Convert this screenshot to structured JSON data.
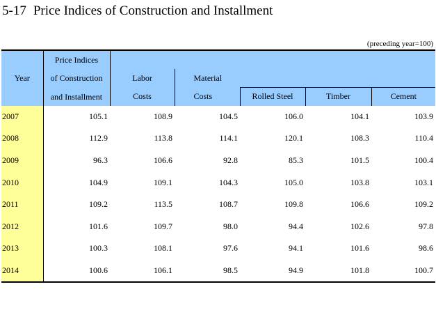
{
  "title": {
    "number": "5-17",
    "text": "Price Indices of Construction and Installment"
  },
  "unit_note": "(preceding year=100)",
  "headers": {
    "year": "Year",
    "price_indices_line1": "Price Indices",
    "price_indices_line2": "of Construction",
    "price_indices_line3": "and Installment",
    "labor_line1": "Labor",
    "labor_line2": "Costs",
    "material_line1": "Material",
    "material_line2": "Costs",
    "rolled_steel": "Rolled Steel",
    "timber": "Timber",
    "cement": "Cement"
  },
  "rows": [
    {
      "year": "2007",
      "price_index": "105.1",
      "labor": "108.9",
      "material": "104.5",
      "rolled_steel": "106.0",
      "timber": "104.1",
      "cement": "103.9"
    },
    {
      "year": "2008",
      "price_index": "112.9",
      "labor": "113.8",
      "material": "114.1",
      "rolled_steel": "120.1",
      "timber": "108.3",
      "cement": "110.4"
    },
    {
      "year": "2009",
      "price_index": "96.3",
      "labor": "106.6",
      "material": "92.8",
      "rolled_steel": "85.3",
      "timber": "101.5",
      "cement": "100.4"
    },
    {
      "year": "2010",
      "price_index": "104.9",
      "labor": "109.1",
      "material": "104.3",
      "rolled_steel": "105.0",
      "timber": "103.8",
      "cement": "103.1"
    },
    {
      "year": "2011",
      "price_index": "109.2",
      "labor": "113.5",
      "material": "108.7",
      "rolled_steel": "109.8",
      "timber": "106.6",
      "cement": "109.2"
    },
    {
      "year": "2012",
      "price_index": "101.6",
      "labor": "109.7",
      "material": "98.0",
      "rolled_steel": "94.4",
      "timber": "102.6",
      "cement": "97.8"
    },
    {
      "year": "2013",
      "price_index": "100.3",
      "labor": "108.1",
      "material": "97.6",
      "rolled_steel": "94.1",
      "timber": "101.6",
      "cement": "98.6"
    },
    {
      "year": "2014",
      "price_index": "100.6",
      "labor": "106.1",
      "material": "98.5",
      "rolled_steel": "94.9",
      "timber": "101.8",
      "cement": "100.7"
    }
  ],
  "colors": {
    "header_bg": "#99ccff",
    "year_bg": "#ffff99"
  }
}
